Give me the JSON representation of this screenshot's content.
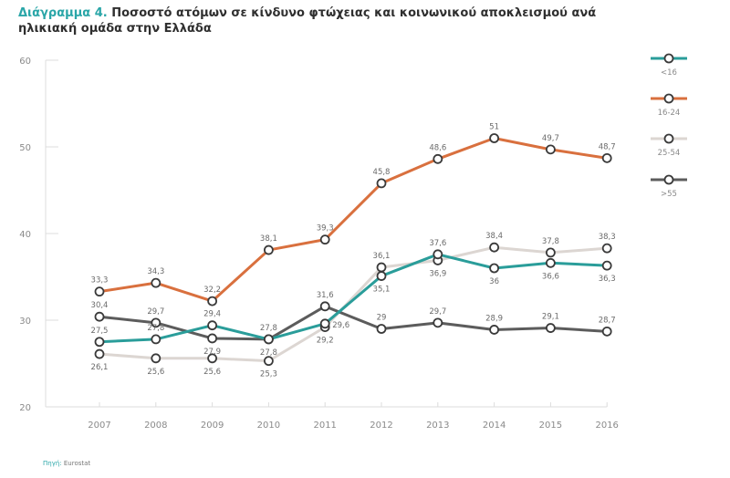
{
  "title": {
    "prefix": "Διάγραμμα 4.",
    "text": "Ποσοστό ατόμων σε κίνδυνο φτώχειας και κοινωνικού αποκλεισμού ανά ηλικιακή ομάδα στην Ελλάδα"
  },
  "source": {
    "label": "Πηγή:",
    "value": "Eurostat"
  },
  "colors": {
    "title_accent": "#2aa6a8",
    "axis": "#dcdcdc"
  },
  "chart_data": {
    "type": "line",
    "title": "Ποσοστό ατόμων σε κίνδυνο φτώχειας και κοινωνικού αποκλεισμού ανά ηλικιακή ομάδα στην Ελλάδα",
    "xlabel": "",
    "ylabel": "",
    "x": [
      "2007",
      "2008",
      "2009",
      "2010",
      "2011",
      "2012",
      "2013",
      "2014",
      "2015",
      "2016"
    ],
    "ylim": [
      20,
      60
    ],
    "yticks": [
      "20",
      "30",
      "40",
      "50",
      "60"
    ],
    "grid": false,
    "legend_position": "right",
    "series": [
      {
        "name": "<16",
        "color": "#2a9d9a",
        "values": [
          27.5,
          27.8,
          29.4,
          27.8,
          29.6,
          35.1,
          37.6,
          36,
          36.6,
          36.3
        ],
        "labels": [
          "27,5",
          "27,8",
          "29,4",
          "27,8",
          "29,6",
          "35,1",
          "37,6",
          "36",
          "36,6",
          "36,3"
        ]
      },
      {
        "name": "16-24",
        "color": "#d9703e",
        "values": [
          33.3,
          34.3,
          32.2,
          38.1,
          39.3,
          45.8,
          48.6,
          51,
          49.7,
          48.7
        ],
        "labels": [
          "33,3",
          "34,3",
          "32,2",
          "38,1",
          "39,3",
          "45,8",
          "48,6",
          "51",
          "49,7",
          "48,7"
        ]
      },
      {
        "name": "25-54",
        "color": "#dcd6d2",
        "values": [
          26.1,
          25.6,
          25.6,
          25.3,
          29.2,
          36.1,
          36.9,
          38.4,
          37.8,
          38.3
        ],
        "labels": [
          "26,1",
          "25,6",
          "25,6",
          "25,3",
          "29,2",
          "36,1",
          "36,9",
          "38,4",
          "37,8",
          "38,3"
        ]
      },
      {
        "name": ">55",
        "color": "#5c5c5c",
        "values": [
          30.4,
          29.7,
          27.9,
          27.8,
          31.6,
          29,
          29.7,
          28.9,
          29.1,
          28.7
        ],
        "labels": [
          "30,4",
          "29,7",
          "27,9",
          "27,8",
          "31,6",
          "29",
          "29,7",
          "28,9",
          "29,1",
          "28,7"
        ]
      }
    ]
  }
}
